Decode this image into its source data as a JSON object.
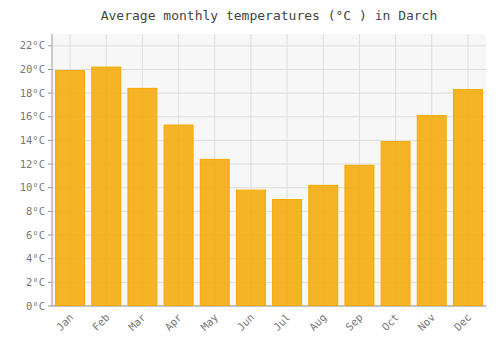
{
  "chart_data": {
    "type": "bar",
    "title": "Average monthly temperatures (°C ) in Darch",
    "categories": [
      "Jan",
      "Feb",
      "Mar",
      "Apr",
      "May",
      "Jun",
      "Jul",
      "Aug",
      "Sep",
      "Oct",
      "Nov",
      "Dec"
    ],
    "values": [
      19.9,
      20.2,
      18.4,
      15.3,
      12.4,
      9.8,
      9.0,
      10.2,
      11.9,
      13.9,
      16.1,
      18.3
    ],
    "color": "#F5A800",
    "ylim": [
      0,
      23
    ],
    "yticks": [
      {
        "value": 0,
        "label": "0°C"
      },
      {
        "value": 2,
        "label": "2°C"
      },
      {
        "value": 4,
        "label": "4°C"
      },
      {
        "value": 6,
        "label": "6°C"
      },
      {
        "value": 8,
        "label": "8°C"
      },
      {
        "value": 10,
        "label": "10°C"
      },
      {
        "value": 12,
        "label": "12°C"
      },
      {
        "value": 14,
        "label": "14°C"
      },
      {
        "value": 16,
        "label": "16°C"
      },
      {
        "value": 18,
        "label": "18°C"
      },
      {
        "value": 20,
        "label": "20°C"
      },
      {
        "value": 22,
        "label": "22°C"
      }
    ],
    "grid": true
  }
}
